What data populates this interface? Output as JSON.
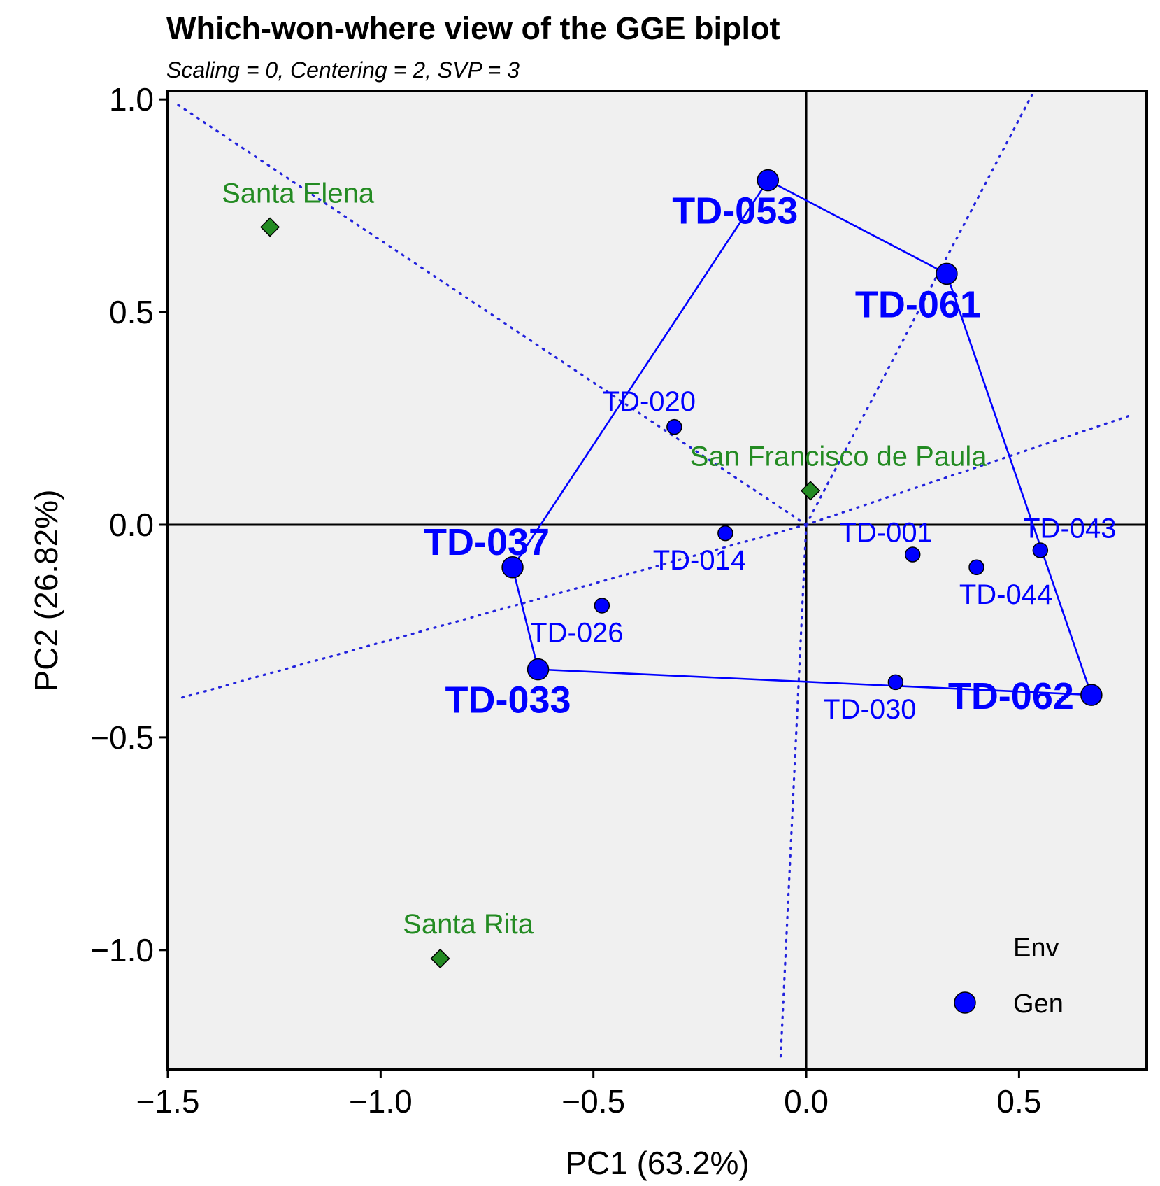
{
  "chart_data": {
    "type": "scatter",
    "title": "Which-won-where view of the GGE biplot",
    "subtitle": "Scaling = 0, Centering = 2, SVP = 3",
    "xlabel": "PC1 (63.2%)",
    "ylabel": "PC2 (26.82%)",
    "xlim": [
      -1.5,
      0.8
    ],
    "ylim": [
      -1.28,
      1.02
    ],
    "x_ticks": [
      -1.5,
      -1.0,
      -0.5,
      0.0,
      0.5
    ],
    "x_tick_labels": [
      "−1.5",
      "−1.0",
      "−0.5",
      "0.0",
      "0.5"
    ],
    "y_ticks": [
      1.0,
      0.5,
      0.0,
      -0.5,
      -1.0
    ],
    "y_tick_labels": [
      "1.0",
      "0.5",
      "0.0",
      "−0.5",
      "−1.0"
    ],
    "grid": false,
    "reference_lines": {
      "x": 0,
      "y": 0
    },
    "colors": {
      "env": "#238b22",
      "gen": "#0000ff",
      "panel": "#f0f0f0",
      "hull": "#0000ff",
      "sector": "#2222dd"
    },
    "environments": [
      {
        "name": "Santa Elena",
        "x": -1.26,
        "y": 0.7
      },
      {
        "name": "San Francisco de Paula",
        "x": 0.01,
        "y": 0.08
      },
      {
        "name": "Santa Rita",
        "x": -0.86,
        "y": -1.02
      }
    ],
    "genotypes": [
      {
        "name": "TD-053",
        "x": -0.09,
        "y": 0.81,
        "vertex": true
      },
      {
        "name": "TD-061",
        "x": 0.33,
        "y": 0.59,
        "vertex": true
      },
      {
        "name": "TD-062",
        "x": 0.67,
        "y": -0.4,
        "vertex": true
      },
      {
        "name": "TD-033",
        "x": -0.63,
        "y": -0.34,
        "vertex": true
      },
      {
        "name": "TD-037",
        "x": -0.69,
        "y": -0.1,
        "vertex": true
      },
      {
        "name": "TD-020",
        "x": -0.31,
        "y": 0.23,
        "vertex": false
      },
      {
        "name": "TD-014",
        "x": -0.19,
        "y": -0.02,
        "vertex": false
      },
      {
        "name": "TD-026",
        "x": -0.48,
        "y": -0.19,
        "vertex": false
      },
      {
        "name": "TD-001",
        "x": 0.25,
        "y": -0.07,
        "vertex": false
      },
      {
        "name": "TD-044",
        "x": 0.4,
        "y": -0.1,
        "vertex": false
      },
      {
        "name": "TD-043",
        "x": 0.55,
        "y": -0.06,
        "vertex": false
      },
      {
        "name": "TD-030",
        "x": 0.21,
        "y": -0.37,
        "vertex": false
      }
    ],
    "polygon_order": [
      "TD-053",
      "TD-061",
      "TD-062",
      "TD-033",
      "TD-037"
    ],
    "sector_rays": [
      {
        "to_x": -1.48,
        "to_y": 0.99
      },
      {
        "to_x": 0.53,
        "to_y": 1.01
      },
      {
        "to_x": 0.77,
        "to_y": 0.26
      },
      {
        "to_x": -1.48,
        "to_y": -0.41
      },
      {
        "to_x": -0.06,
        "to_y": -1.25
      }
    ],
    "legend": {
      "position": "bottom-right",
      "items": [
        {
          "label": "Env",
          "symbol": "none"
        },
        {
          "label": "Gen",
          "symbol": "circle"
        }
      ]
    }
  }
}
